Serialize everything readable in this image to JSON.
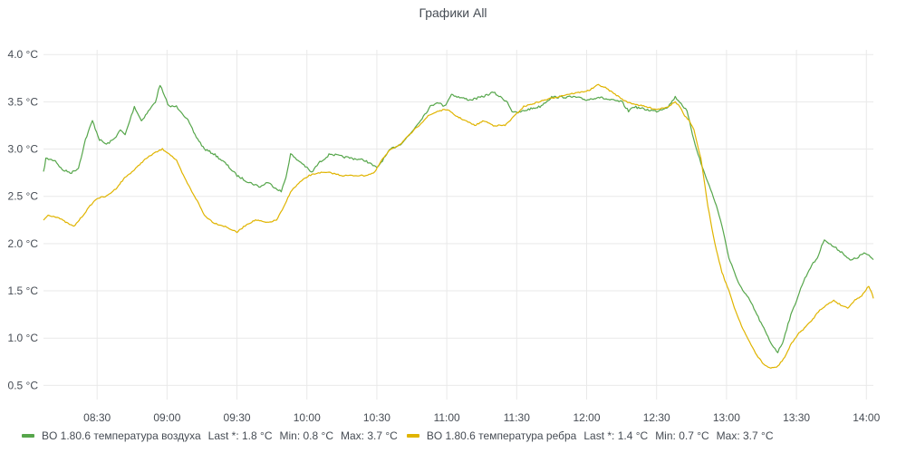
{
  "chart_data": {
    "type": "line",
    "title": "Графики All",
    "xlabel": "",
    "ylabel": "",
    "ylim": [
      0.35,
      4.05
    ],
    "ytick_values": [
      0.5,
      1.0,
      1.5,
      2.0,
      2.5,
      3.0,
      3.5,
      4.0
    ],
    "ytick_labels": [
      "0.5 °C",
      "1.0 °C",
      "1.5 °C",
      "2.0 °C",
      "2.5 °C",
      "3.0 °C",
      "3.5 °C",
      "4.0 °C"
    ],
    "x_range": [
      "08:07",
      "14:03"
    ],
    "xtick_values": [
      "08:30",
      "09:00",
      "09:30",
      "10:00",
      "10:30",
      "11:00",
      "11:30",
      "12:00",
      "12:30",
      "13:00",
      "13:30",
      "14:00"
    ],
    "grid": true,
    "legend_position": "bottom",
    "series": [
      {
        "name": "BO 1.80.6 температура воздуха",
        "color": "#56a64b",
        "stats": {
          "last": "Last *: 1.8 °C",
          "min": "Min: 0.8 °C",
          "max": "Max: 3.7 °C"
        },
        "points": [
          [
            "08:07",
            2.75
          ],
          [
            "08:08",
            2.9
          ],
          [
            "08:12",
            2.88
          ],
          [
            "08:15",
            2.78
          ],
          [
            "08:19",
            2.75
          ],
          [
            "08:22",
            2.8
          ],
          [
            "08:25",
            3.1
          ],
          [
            "08:28",
            3.3
          ],
          [
            "08:31",
            3.1
          ],
          [
            "08:34",
            3.05
          ],
          [
            "08:37",
            3.1
          ],
          [
            "08:40",
            3.2
          ],
          [
            "08:42",
            3.15
          ],
          [
            "08:44",
            3.3
          ],
          [
            "08:46",
            3.45
          ],
          [
            "08:49",
            3.3
          ],
          [
            "08:52",
            3.4
          ],
          [
            "08:55",
            3.5
          ],
          [
            "08:57",
            3.68
          ],
          [
            "08:59",
            3.55
          ],
          [
            "09:01",
            3.45
          ],
          [
            "09:04",
            3.45
          ],
          [
            "09:06",
            3.4
          ],
          [
            "09:09",
            3.3
          ],
          [
            "09:12",
            3.15
          ],
          [
            "09:16",
            3.0
          ],
          [
            "09:20",
            2.95
          ],
          [
            "09:25",
            2.85
          ],
          [
            "09:30",
            2.72
          ],
          [
            "09:35",
            2.65
          ],
          [
            "09:40",
            2.6
          ],
          [
            "09:43",
            2.65
          ],
          [
            "09:46",
            2.6
          ],
          [
            "09:49",
            2.55
          ],
          [
            "09:51",
            2.7
          ],
          [
            "09:53",
            2.95
          ],
          [
            "09:55",
            2.9
          ],
          [
            "09:58",
            2.85
          ],
          [
            "10:00",
            2.8
          ],
          [
            "10:02",
            2.75
          ],
          [
            "10:05",
            2.85
          ],
          [
            "10:10",
            2.95
          ],
          [
            "10:15",
            2.92
          ],
          [
            "10:20",
            2.9
          ],
          [
            "10:25",
            2.88
          ],
          [
            "10:30",
            2.8
          ],
          [
            "10:33",
            2.9
          ],
          [
            "10:36",
            3.0
          ],
          [
            "10:40",
            3.05
          ],
          [
            "10:44",
            3.15
          ],
          [
            "10:47",
            3.25
          ],
          [
            "10:50",
            3.35
          ],
          [
            "10:53",
            3.45
          ],
          [
            "10:56",
            3.5
          ],
          [
            "10:59",
            3.45
          ],
          [
            "11:02",
            3.58
          ],
          [
            "11:05",
            3.55
          ],
          [
            "11:10",
            3.52
          ],
          [
            "11:15",
            3.55
          ],
          [
            "11:20",
            3.6
          ],
          [
            "11:23",
            3.55
          ],
          [
            "11:26",
            3.5
          ],
          [
            "11:28",
            3.4
          ],
          [
            "11:30",
            3.38
          ],
          [
            "11:35",
            3.42
          ],
          [
            "11:40",
            3.45
          ],
          [
            "11:45",
            3.55
          ],
          [
            "11:50",
            3.55
          ],
          [
            "11:55",
            3.55
          ],
          [
            "12:00",
            3.52
          ],
          [
            "12:05",
            3.55
          ],
          [
            "12:10",
            3.52
          ],
          [
            "12:15",
            3.5
          ],
          [
            "12:18",
            3.4
          ],
          [
            "12:20",
            3.45
          ],
          [
            "12:25",
            3.42
          ],
          [
            "12:30",
            3.4
          ],
          [
            "12:35",
            3.45
          ],
          [
            "12:38",
            3.55
          ],
          [
            "12:40",
            3.5
          ],
          [
            "12:43",
            3.4
          ],
          [
            "12:46",
            3.1
          ],
          [
            "12:49",
            2.85
          ],
          [
            "12:52",
            2.65
          ],
          [
            "12:55",
            2.45
          ],
          [
            "12:58",
            2.2
          ],
          [
            "13:01",
            1.85
          ],
          [
            "13:04",
            1.65
          ],
          [
            "13:07",
            1.5
          ],
          [
            "13:10",
            1.4
          ],
          [
            "13:13",
            1.25
          ],
          [
            "13:16",
            1.1
          ],
          [
            "13:19",
            0.95
          ],
          [
            "13:22",
            0.85
          ],
          [
            "13:24",
            0.95
          ],
          [
            "13:27",
            1.2
          ],
          [
            "13:30",
            1.4
          ],
          [
            "13:33",
            1.6
          ],
          [
            "13:36",
            1.75
          ],
          [
            "13:39",
            1.85
          ],
          [
            "13:42",
            2.05
          ],
          [
            "13:44",
            2.0
          ],
          [
            "13:47",
            1.95
          ],
          [
            "13:50",
            1.9
          ],
          [
            "13:53",
            1.82
          ],
          [
            "13:56",
            1.85
          ],
          [
            "13:59",
            1.9
          ],
          [
            "14:01",
            1.87
          ],
          [
            "14:03",
            1.83
          ]
        ]
      },
      {
        "name": "BO 1.80.6 температура ребра",
        "color": "#e0b400",
        "stats": {
          "last": "Last *: 1.4 °C",
          "min": "Min: 0.7 °C",
          "max": "Max: 3.7 °C"
        },
        "points": [
          [
            "08:07",
            2.25
          ],
          [
            "08:09",
            2.3
          ],
          [
            "08:13",
            2.28
          ],
          [
            "08:17",
            2.22
          ],
          [
            "08:20",
            2.18
          ],
          [
            "08:24",
            2.3
          ],
          [
            "08:27",
            2.4
          ],
          [
            "08:30",
            2.48
          ],
          [
            "08:34",
            2.5
          ],
          [
            "08:38",
            2.58
          ],
          [
            "08:42",
            2.7
          ],
          [
            "08:46",
            2.78
          ],
          [
            "08:50",
            2.88
          ],
          [
            "08:54",
            2.95
          ],
          [
            "08:58",
            3.0
          ],
          [
            "09:01",
            2.95
          ],
          [
            "09:04",
            2.88
          ],
          [
            "09:07",
            2.72
          ],
          [
            "09:10",
            2.58
          ],
          [
            "09:13",
            2.45
          ],
          [
            "09:16",
            2.3
          ],
          [
            "09:20",
            2.22
          ],
          [
            "09:25",
            2.18
          ],
          [
            "09:30",
            2.12
          ],
          [
            "09:34",
            2.2
          ],
          [
            "09:38",
            2.25
          ],
          [
            "09:43",
            2.22
          ],
          [
            "09:47",
            2.25
          ],
          [
            "09:50",
            2.38
          ],
          [
            "09:53",
            2.55
          ],
          [
            "09:57",
            2.65
          ],
          [
            "10:01",
            2.72
          ],
          [
            "10:05",
            2.75
          ],
          [
            "10:10",
            2.75
          ],
          [
            "10:15",
            2.72
          ],
          [
            "10:20",
            2.72
          ],
          [
            "10:25",
            2.72
          ],
          [
            "10:29",
            2.75
          ],
          [
            "10:32",
            2.88
          ],
          [
            "10:36",
            3.0
          ],
          [
            "10:40",
            3.05
          ],
          [
            "10:44",
            3.15
          ],
          [
            "10:48",
            3.25
          ],
          [
            "10:52",
            3.35
          ],
          [
            "10:56",
            3.4
          ],
          [
            "11:00",
            3.42
          ],
          [
            "11:04",
            3.35
          ],
          [
            "11:08",
            3.3
          ],
          [
            "11:12",
            3.25
          ],
          [
            "11:16",
            3.3
          ],
          [
            "11:20",
            3.25
          ],
          [
            "11:25",
            3.25
          ],
          [
            "11:29",
            3.35
          ],
          [
            "11:33",
            3.45
          ],
          [
            "11:37",
            3.48
          ],
          [
            "11:42",
            3.52
          ],
          [
            "11:47",
            3.55
          ],
          [
            "11:52",
            3.58
          ],
          [
            "11:57",
            3.6
          ],
          [
            "12:01",
            3.62
          ],
          [
            "12:05",
            3.68
          ],
          [
            "12:08",
            3.65
          ],
          [
            "12:11",
            3.6
          ],
          [
            "12:14",
            3.55
          ],
          [
            "12:17",
            3.5
          ],
          [
            "12:20",
            3.48
          ],
          [
            "12:25",
            3.45
          ],
          [
            "12:30",
            3.42
          ],
          [
            "12:35",
            3.45
          ],
          [
            "12:38",
            3.5
          ],
          [
            "12:40",
            3.45
          ],
          [
            "12:42",
            3.35
          ],
          [
            "12:44",
            3.3
          ],
          [
            "12:46",
            3.2
          ],
          [
            "12:49",
            2.9
          ],
          [
            "12:52",
            2.4
          ],
          [
            "12:55",
            2.0
          ],
          [
            "12:58",
            1.7
          ],
          [
            "13:01",
            1.5
          ],
          [
            "13:04",
            1.28
          ],
          [
            "13:07",
            1.1
          ],
          [
            "13:10",
            0.95
          ],
          [
            "13:13",
            0.82
          ],
          [
            "13:16",
            0.72
          ],
          [
            "13:19",
            0.68
          ],
          [
            "13:22",
            0.7
          ],
          [
            "13:25",
            0.8
          ],
          [
            "13:28",
            0.95
          ],
          [
            "13:31",
            1.05
          ],
          [
            "13:34",
            1.12
          ],
          [
            "13:37",
            1.2
          ],
          [
            "13:40",
            1.3
          ],
          [
            "13:43",
            1.35
          ],
          [
            "13:46",
            1.4
          ],
          [
            "13:49",
            1.35
          ],
          [
            "13:52",
            1.32
          ],
          [
            "13:55",
            1.4
          ],
          [
            "13:58",
            1.45
          ],
          [
            "14:01",
            1.55
          ],
          [
            "14:02",
            1.5
          ],
          [
            "14:03",
            1.42
          ]
        ]
      }
    ]
  }
}
